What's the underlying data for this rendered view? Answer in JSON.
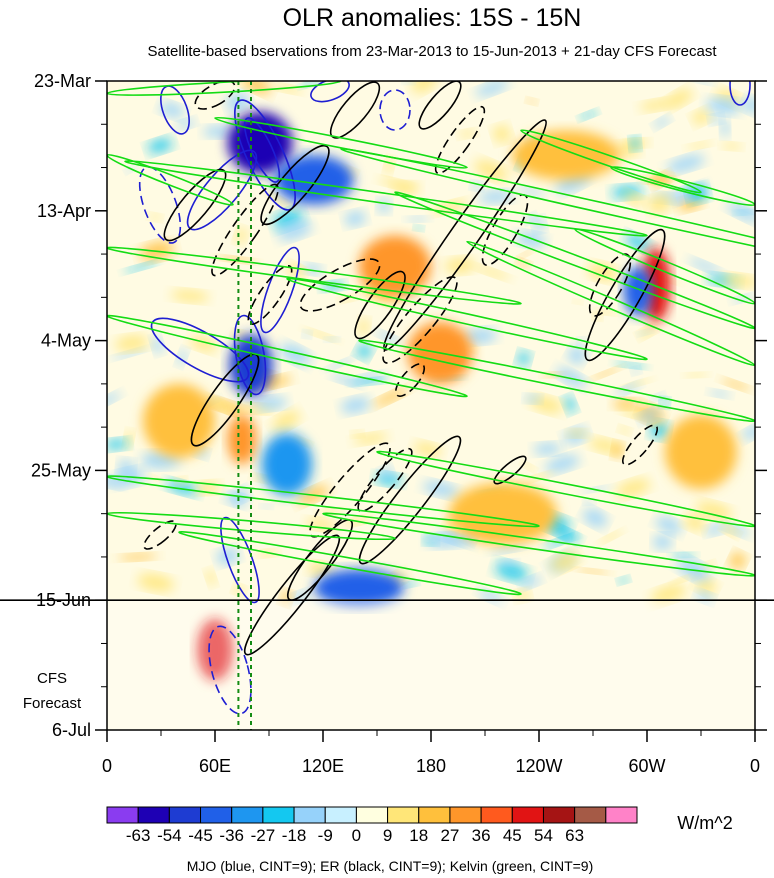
{
  "chart_data": {
    "type": "heatmap",
    "title": "OLR anomalies: 15S - 15N",
    "subtitle": "Satellite-based bservations from 23-Mar-2013 to 15-Jun-2013 + 21-day CFS Forecast",
    "x_ticks": [
      "0",
      "60E",
      "120E",
      "180",
      "120W",
      "60W",
      "0"
    ],
    "x_tick_lons": [
      0,
      60,
      120,
      180,
      240,
      300,
      360
    ],
    "xlim": [
      0,
      360
    ],
    "y_ticks": [
      "23-Mar",
      "13-Apr",
      "4-May",
      "25-May",
      "15-Jun",
      "6-Jul"
    ],
    "y_tick_days": [
      0,
      21,
      42,
      63,
      84,
      105
    ],
    "ylim": [
      0,
      105
    ],
    "forecast_start_day": 84,
    "forecast_label_line1": "CFS",
    "forecast_label_line2": "Forecast",
    "reference_lons": [
      73,
      80
    ],
    "colorbar": {
      "levels": [
        "-63",
        "-54",
        "-45",
        "-36",
        "-27",
        "-18",
        "-9",
        "0",
        "9",
        "18",
        "27",
        "36",
        "45",
        "54",
        "63"
      ],
      "colors": [
        "#8a3cf0",
        "#1e00b4",
        "#1e3cd2",
        "#2060e8",
        "#1e96f0",
        "#14c8f0",
        "#96d2fa",
        "#c8f0ff",
        "#ffffe0",
        "#ffe678",
        "#ffc03c",
        "#ff962a",
        "#ff5a1e",
        "#e11414",
        "#a51414",
        "#a55a46",
        "#ff82c8"
      ],
      "units": "W/m^2"
    },
    "hotspots": [
      {
        "lon": 85,
        "day": 10,
        "value": -55,
        "rx": 18,
        "ry": 5
      },
      {
        "lon": 115,
        "day": 16,
        "value": -45,
        "rx": 22,
        "ry": 4
      },
      {
        "lon": 80,
        "day": 46,
        "value": -50,
        "rx": 12,
        "ry": 5
      },
      {
        "lon": 60,
        "day": 92,
        "value": 45,
        "rx": 10,
        "ry": 5
      },
      {
        "lon": 305,
        "day": 33,
        "value": 45,
        "rx": 8,
        "ry": 6
      },
      {
        "lon": 295,
        "day": 34,
        "value": -45,
        "rx": 8,
        "ry": 4
      },
      {
        "lon": 185,
        "day": 44,
        "value": 30,
        "rx": 18,
        "ry": 5
      },
      {
        "lon": 255,
        "day": 12,
        "value": 25,
        "rx": 30,
        "ry": 4
      },
      {
        "lon": 160,
        "day": 30,
        "value": 27,
        "rx": 20,
        "ry": 5
      },
      {
        "lon": 140,
        "day": 82,
        "value": -40,
        "rx": 25,
        "ry": 3
      },
      {
        "lon": 75,
        "day": 58,
        "value": 30,
        "rx": 8,
        "ry": 4
      },
      {
        "lon": 100,
        "day": 62,
        "value": -30,
        "rx": 14,
        "ry": 5
      },
      {
        "lon": 40,
        "day": 55,
        "value": 20,
        "rx": 20,
        "ry": 6
      },
      {
        "lon": 330,
        "day": 60,
        "value": 20,
        "rx": 20,
        "ry": 6
      },
      {
        "lon": 220,
        "day": 70,
        "value": 18,
        "rx": 30,
        "ry": 5
      }
    ]
  },
  "footnote": "MJO (blue, CINT=9); ER (black, CINT=9); Kelvin (green, CINT=9)"
}
